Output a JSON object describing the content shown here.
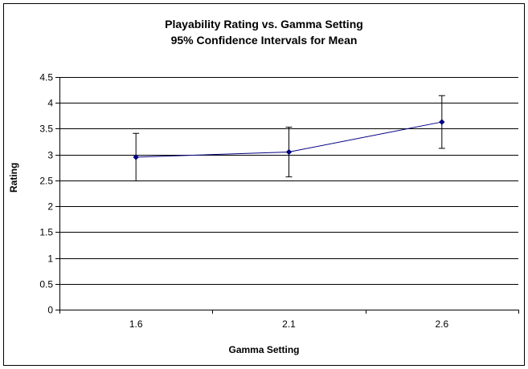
{
  "chart_data": {
    "type": "line",
    "title": "Playability Rating vs. Gamma Setting",
    "subtitle": "95% Confidence Intervals for Mean",
    "xlabel": "Gamma Setting",
    "ylabel": "Rating",
    "categories": [
      "1.6",
      "2.1",
      "2.6"
    ],
    "series": [
      {
        "values": [
          2.95,
          3.05,
          3.63
        ],
        "error_low": [
          2.49,
          2.57,
          3.12
        ],
        "error_high": [
          3.41,
          3.53,
          4.14
        ]
      }
    ],
    "ylim": [
      0,
      4.5
    ],
    "yticks": [
      "0",
      "0.5",
      "1",
      "1.5",
      "2",
      "2.5",
      "3",
      "3.5",
      "4",
      "4.5"
    ],
    "grid": true,
    "legend": "none",
    "colors": {
      "series": "#000080",
      "grid": "#000000",
      "error_bar": "#000000"
    }
  }
}
